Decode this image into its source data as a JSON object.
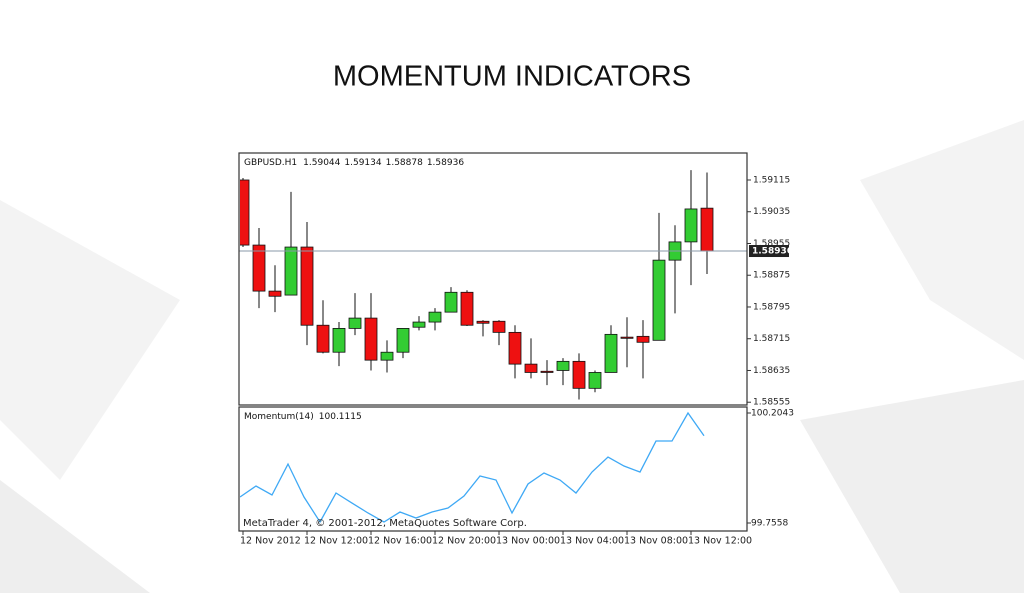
{
  "title": "MOMENTUM INDICATORS",
  "chart_data": [
    {
      "type": "candlestick",
      "title": "GBPUSD.H1",
      "categories": [
        "12 Nov 2012",
        null,
        null,
        null,
        "12 Nov 12:00",
        null,
        null,
        null,
        "12 Nov 16:00",
        null,
        null,
        null,
        "12 Nov 20:00",
        null,
        null,
        null,
        "13 Nov 00:00",
        null,
        null,
        null,
        "13 Nov 04:00",
        null,
        null,
        null,
        "13 Nov 08:00",
        null,
        null,
        null,
        "13 Nov 12:00",
        null
      ],
      "open": [
        1.59115,
        1.58951,
        1.58835,
        1.58825,
        1.58946,
        1.58749,
        1.58681,
        1.58741,
        1.58767,
        1.58661,
        1.58681,
        1.58744,
        1.58757,
        1.58782,
        1.58832,
        1.58759,
        1.58759,
        1.58731,
        1.58651,
        1.58633,
        1.58635,
        1.58658,
        1.5859,
        1.5863,
        1.58719,
        1.58721,
        1.58711,
        1.58913,
        1.58959,
        1.59044
      ],
      "high": [
        1.5912,
        1.58994,
        1.589,
        1.59085,
        1.59009,
        1.58812,
        1.58757,
        1.5883,
        1.5883,
        1.58711,
        1.58741,
        1.58772,
        1.58792,
        1.58845,
        1.58837,
        1.58762,
        1.58762,
        1.58749,
        1.58716,
        1.58661,
        1.58666,
        1.58678,
        1.58635,
        1.58749,
        1.58769,
        1.58762,
        1.59032,
        1.59001,
        1.5914,
        1.59134
      ],
      "low": [
        1.58946,
        1.58792,
        1.58782,
        1.58825,
        1.58699,
        1.58678,
        1.58646,
        1.58724,
        1.58635,
        1.5863,
        1.58666,
        1.58736,
        1.58736,
        1.58782,
        1.58747,
        1.58721,
        1.58699,
        1.58615,
        1.58615,
        1.58598,
        1.58598,
        1.58562,
        1.5858,
        1.5863,
        1.58643,
        1.58615,
        1.58711,
        1.58779,
        1.5885,
        1.58878
      ],
      "close": [
        1.58951,
        1.58835,
        1.58822,
        1.58946,
        1.58749,
        1.58681,
        1.58741,
        1.58767,
        1.58661,
        1.58681,
        1.58741,
        1.58757,
        1.58782,
        1.58832,
        1.58749,
        1.58754,
        1.58731,
        1.58651,
        1.5863,
        1.5863,
        1.58658,
        1.5859,
        1.5863,
        1.58726,
        1.58716,
        1.58706,
        1.58913,
        1.58959,
        1.59042,
        1.58936
      ],
      "up_color": "#33cc33",
      "down_color": "#ee1111",
      "ylim": [
        1.58548,
        1.59183
      ],
      "yticks": [
        1.59115,
        1.59035,
        1.58955,
        1.58875,
        1.58795,
        1.58715,
        1.58635,
        1.58555
      ]
    },
    {
      "type": "line",
      "title": "Momentum(14)",
      "color": "#3fa9f5",
      "values": [
        99.8618,
        99.9067,
        99.87,
        99.9963,
        99.8618,
        99.7599,
        99.8781,
        99.8373,
        99.7966,
        99.7599,
        99.8006,
        99.7762,
        99.8006,
        99.817,
        99.8659,
        99.9474,
        99.9311,
        99.7966,
        99.9148,
        99.9597,
        99.9311,
        99.8781,
        99.9637,
        100.0249,
        99.9882,
        99.9637,
        100.0901,
        100.0901,
        100.2043,
        100.1115
      ],
      "ylim": [
        99.7232,
        100.2288
      ],
      "yticks": [
        100.2043,
        99.7558
      ],
      "footer": "MetaTrader 4, © 2001-2012, MetaQuotes Software Corp."
    }
  ]
}
